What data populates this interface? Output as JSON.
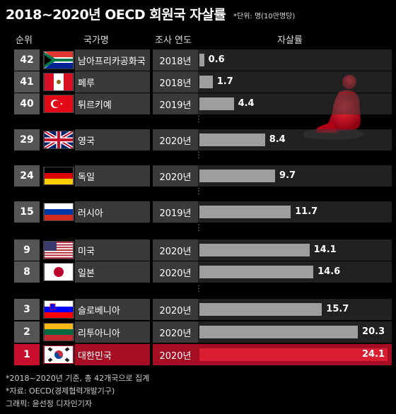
{
  "title": "2018~2020년 OECD 회원국 자살률",
  "unit": "*단위: 명(10만명당)",
  "headers": {
    "rank": "순위",
    "country": "국가명",
    "year": "조사 연도",
    "rate": "자살률"
  },
  "chart_data": {
    "type": "bar",
    "orientation": "horizontal",
    "title": "2018~2020년 OECD 회원국 자살률",
    "xlabel": "자살률",
    "xlim": [
      0,
      24.1
    ],
    "categories": [
      "남아프리카공화국",
      "페루",
      "튀르키예",
      "영국",
      "독일",
      "러시아",
      "미국",
      "일본",
      "슬로베니아",
      "리투아니아",
      "대한민국"
    ],
    "values": [
      0.6,
      1.7,
      4.4,
      8.4,
      9.7,
      11.7,
      14.1,
      14.6,
      15.7,
      20.3,
      24.1
    ],
    "rows": [
      {
        "rank": "42",
        "country": "남아프리카공화국",
        "year": "2018년",
        "value": 0.6,
        "label": "0.6",
        "flag": "south-africa"
      },
      {
        "rank": "41",
        "country": "페루",
        "year": "2018년",
        "value": 1.7,
        "label": "1.7",
        "flag": "peru"
      },
      {
        "rank": "40",
        "country": "튀르키예",
        "year": "2019년",
        "value": 4.4,
        "label": "4.4",
        "flag": "turkey"
      },
      {
        "rank": "29",
        "country": "영국",
        "year": "2020년",
        "value": 8.4,
        "label": "8.4",
        "flag": "uk"
      },
      {
        "rank": "24",
        "country": "독일",
        "year": "2020년",
        "value": 9.7,
        "label": "9.7",
        "flag": "germany"
      },
      {
        "rank": "15",
        "country": "러시아",
        "year": "2019년",
        "value": 11.7,
        "label": "11.7",
        "flag": "russia"
      },
      {
        "rank": "9",
        "country": "미국",
        "year": "2020년",
        "value": 14.1,
        "label": "14.1",
        "flag": "usa"
      },
      {
        "rank": "8",
        "country": "일본",
        "year": "2020년",
        "value": 14.6,
        "label": "14.6",
        "flag": "japan"
      },
      {
        "rank": "3",
        "country": "슬로베니아",
        "year": "2020년",
        "value": 15.7,
        "label": "15.7",
        "flag": "slovenia"
      },
      {
        "rank": "2",
        "country": "리투아니아",
        "year": "2020년",
        "value": 20.3,
        "label": "20.3",
        "flag": "lithuania"
      },
      {
        "rank": "1",
        "country": "대한민국",
        "year": "2020년",
        "value": 24.1,
        "label": "24.1",
        "flag": "south-korea",
        "highlight": true
      }
    ],
    "colors": {
      "bar": "#9e9e9e",
      "highlight": "#d81e30"
    }
  },
  "footnotes": {
    "note": "*2018~2020년 기준, 총 42개국으로 집계",
    "source": "*자료: OECD(경제협력개발기구)",
    "credit": "그래픽: 윤선정 디자인기자"
  }
}
